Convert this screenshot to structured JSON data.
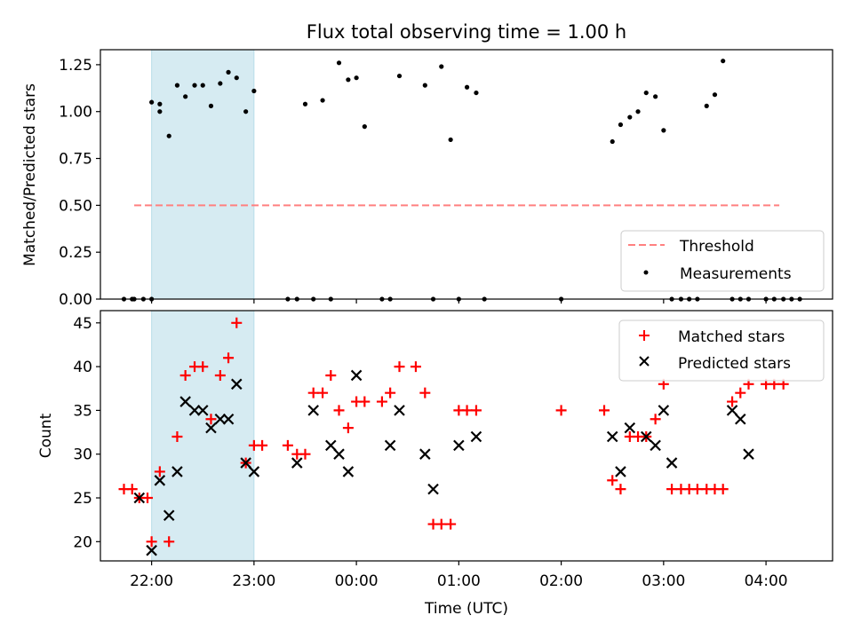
{
  "chart_data": [
    {
      "type": "scatter",
      "title": "Flux total observing time = 1.00 h",
      "xlabel": "",
      "ylabel": "Matched/Predicted stars",
      "ylim": [
        0,
        1.33
      ],
      "xlim_hours": [
        21.5,
        28.65
      ],
      "yticks": [
        0.0,
        0.25,
        0.5,
        0.75,
        1.0,
        1.25
      ],
      "ytick_labels": [
        "0.00",
        "0.25",
        "0.50",
        "0.75",
        "1.00",
        "1.25"
      ],
      "highlight_span_hours": [
        22.0,
        23.0
      ],
      "threshold": {
        "name": "Threshold",
        "value": 0.5,
        "x_range_hours": [
          21.83,
          28.13
        ],
        "color": "#ff8080",
        "style": "dashed"
      },
      "measurements": {
        "name": "Measurements",
        "color": "#000000",
        "x_hours": [
          21.83,
          21.92,
          22.08,
          21.73,
          21.81,
          22.0,
          22.0,
          22.08,
          22.17,
          22.25,
          22.33,
          22.42,
          22.5,
          22.58,
          22.67,
          22.75,
          22.83,
          22.92,
          23.0,
          23.33,
          23.42,
          23.5,
          23.58,
          23.67,
          23.75,
          23.83,
          23.92,
          24.0,
          24.08,
          24.25,
          24.33,
          24.42,
          24.67,
          24.75,
          24.83,
          24.92,
          25.0,
          25.08,
          25.17,
          25.25,
          26.0,
          26.5,
          26.58,
          26.67,
          26.75,
          26.83,
          26.92,
          27.0,
          27.08,
          27.17,
          27.25,
          27.33,
          27.42,
          27.5,
          27.58,
          27.67,
          27.75,
          27.83,
          28.0,
          28.08,
          28.17,
          28.25,
          28.33
        ],
        "y": [
          0.0,
          0.0,
          1.0,
          0.0,
          0.0,
          0.0,
          1.05,
          1.04,
          0.87,
          1.14,
          1.08,
          1.14,
          1.14,
          1.03,
          1.15,
          1.21,
          1.18,
          1.0,
          1.11,
          0.0,
          0.0,
          1.04,
          0.0,
          1.06,
          0.0,
          1.26,
          1.17,
          1.18,
          0.92,
          0.0,
          0.0,
          1.19,
          1.14,
          0.0,
          1.24,
          0.85,
          0.0,
          1.13,
          1.1,
          0.0,
          0.0,
          0.84,
          0.93,
          0.97,
          1.0,
          1.1,
          1.08,
          0.9,
          0.0,
          0.0,
          0.0,
          0.0,
          1.03,
          1.09,
          1.27,
          0.0,
          0.0,
          0.0,
          0.0,
          0.0,
          0.0,
          0.0,
          0.0
        ]
      },
      "legend": [
        "Threshold",
        "Measurements"
      ],
      "legend_position": "lower-right"
    },
    {
      "type": "scatter",
      "title": "",
      "xlabel": "Time (UTC)",
      "ylabel": "Count",
      "ylim": [
        17.8,
        46.4
      ],
      "xlim_hours": [
        21.5,
        28.65
      ],
      "yticks": [
        20,
        25,
        30,
        35,
        40,
        45
      ],
      "ytick_labels": [
        "20",
        "25",
        "30",
        "35",
        "40",
        "45"
      ],
      "xticks_hours": [
        22,
        23,
        24,
        25,
        26,
        27,
        28
      ],
      "xtick_labels": [
        "22:00",
        "23:00",
        "00:00",
        "01:00",
        "02:00",
        "03:00",
        "04:00"
      ],
      "highlight_span_hours": [
        22.0,
        23.0
      ],
      "series": [
        {
          "name": "Matched stars",
          "marker": "plus",
          "color": "#ff0000",
          "x_hours": [
            21.73,
            21.81,
            21.88,
            21.96,
            22.0,
            22.08,
            22.17,
            22.25,
            22.33,
            22.42,
            22.5,
            22.58,
            22.67,
            22.75,
            22.83,
            22.92,
            23.0,
            23.08,
            23.33,
            23.42,
            23.5,
            23.58,
            23.67,
            23.75,
            23.83,
            23.92,
            24.0,
            24.08,
            24.25,
            24.33,
            24.42,
            24.58,
            24.67,
            24.75,
            24.83,
            24.92,
            25.0,
            25.08,
            25.17,
            26.0,
            26.42,
            26.5,
            26.58,
            26.67,
            26.75,
            26.83,
            26.92,
            27.0,
            27.08,
            27.17,
            27.25,
            27.33,
            27.42,
            27.5,
            27.58,
            27.67,
            27.75,
            27.83,
            28.0,
            28.08,
            28.17
          ],
          "y": [
            26,
            26,
            25,
            25,
            20,
            28,
            20,
            32,
            39,
            40,
            40,
            34,
            39,
            41,
            45,
            29,
            31,
            31,
            31,
            30,
            30,
            37,
            37,
            39,
            35,
            33,
            36,
            36,
            36,
            37,
            40,
            40,
            37,
            22,
            22,
            22,
            35,
            35,
            35,
            35,
            35,
            27,
            26,
            32,
            32,
            32,
            34,
            38,
            26,
            26,
            26,
            26,
            26,
            26,
            26,
            36,
            37,
            38,
            38,
            38,
            38
          ]
        },
        {
          "name": "Predicted stars",
          "marker": "x",
          "color": "#000000",
          "x_hours": [
            21.88,
            22.0,
            22.08,
            22.17,
            22.25,
            22.33,
            22.42,
            22.5,
            22.58,
            22.67,
            22.75,
            22.83,
            22.92,
            23.0,
            23.42,
            23.58,
            23.75,
            23.83,
            23.92,
            24.0,
            24.33,
            24.42,
            24.67,
            24.75,
            25.0,
            25.17,
            26.5,
            26.58,
            26.67,
            26.83,
            26.92,
            27.0,
            27.08,
            27.67,
            27.75,
            27.83
          ],
          "y": [
            25,
            19,
            27,
            23,
            28,
            36,
            35,
            35,
            33,
            34,
            34,
            38,
            29,
            28,
            29,
            35,
            31,
            30,
            28,
            39,
            31,
            35,
            30,
            26,
            31,
            32,
            32,
            28,
            33,
            32,
            31,
            35,
            29,
            35,
            34,
            30
          ]
        }
      ],
      "legend": [
        "Matched stars",
        "Predicted stars"
      ],
      "legend_position": "upper-right"
    }
  ]
}
